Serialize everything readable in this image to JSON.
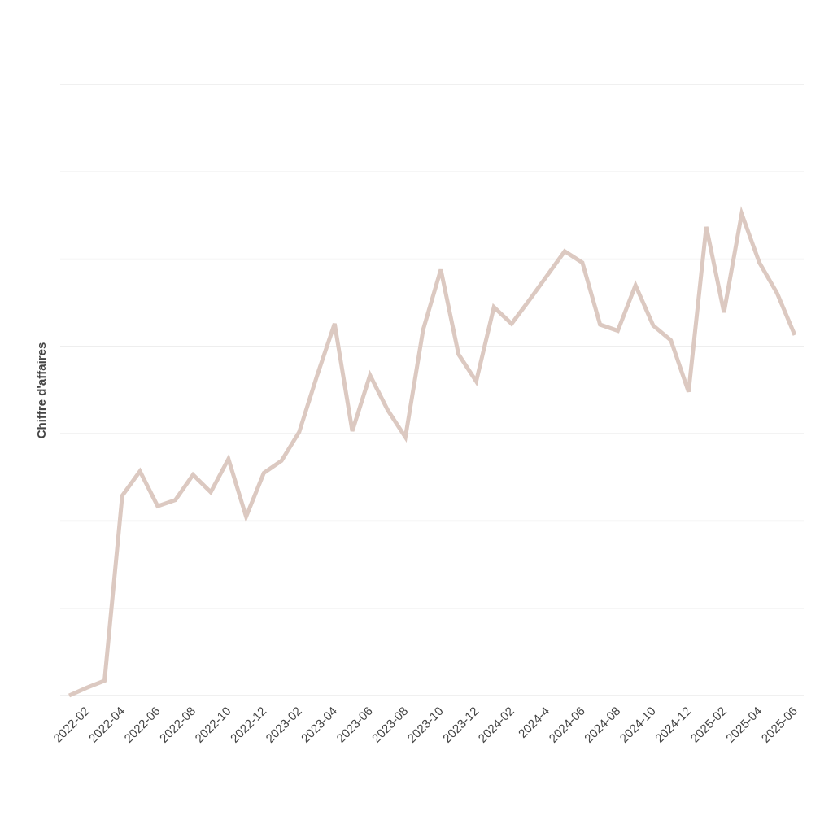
{
  "chart_data": {
    "type": "line",
    "y_label": "Chiffre d'affaires",
    "categories": [
      null,
      "2022-02",
      null,
      "2022-04",
      null,
      "2022-06",
      null,
      "2022-08",
      null,
      "2022-10",
      null,
      "2022-12",
      null,
      "2023-02",
      null,
      "2023-04",
      null,
      "2023-06",
      null,
      "2023-08",
      null,
      "2023-10",
      null,
      "2023-12",
      null,
      "2024-02",
      null,
      "2024-4",
      null,
      "2024-06",
      null,
      "2024-08",
      null,
      "2024-10",
      null,
      "2024-12",
      null,
      "2025-02",
      null,
      "2025-04",
      null,
      "2025-06"
    ],
    "series": [
      {
        "color": "#dcc9c1",
        "values": [
          0,
          0.09,
          0.17,
          2.29,
          2.57,
          2.17,
          2.24,
          2.53,
          2.33,
          2.71,
          2.05,
          2.55,
          2.69,
          3.02,
          3.66,
          4.26,
          3.03,
          3.67,
          3.27,
          2.96,
          4.19,
          4.88,
          3.91,
          3.6,
          4.45,
          4.26,
          4.53,
          4.81,
          5.09,
          4.96,
          4.25,
          4.18,
          4.7,
          4.24,
          4.07,
          3.48,
          5.37,
          4.39,
          5.52,
          4.96,
          4.61,
          4.13
        ]
      }
    ],
    "ylim": [
      0,
      7
    ],
    "yticks": [
      0,
      1,
      2,
      3,
      4,
      5,
      6,
      7
    ],
    "grid": true,
    "ytick_labels": false
  }
}
